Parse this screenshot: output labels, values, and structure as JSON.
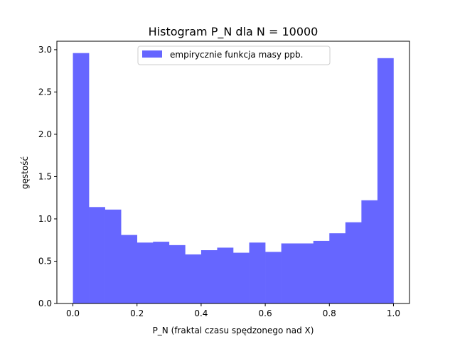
{
  "chart_data": {
    "type": "bar",
    "title": "Histogram P_N dla N = 10000",
    "xlabel": "P_N (fraktal czasu spędzonego nad X)",
    "ylabel": "gęstość",
    "xlim": [
      -0.05,
      1.05
    ],
    "ylim": [
      0,
      3.1
    ],
    "xticks": [
      0.0,
      0.2,
      0.4,
      0.6,
      0.8,
      1.0
    ],
    "xtick_labels": [
      "0.0",
      "0.2",
      "0.4",
      "0.6",
      "0.8",
      "1.0"
    ],
    "yticks": [
      0.0,
      0.5,
      1.0,
      1.5,
      2.0,
      2.5,
      3.0
    ],
    "ytick_labels": [
      "0.0",
      "0.5",
      "1.0",
      "1.5",
      "2.0",
      "2.5",
      "3.0"
    ],
    "grid": false,
    "legend_position": "upper center",
    "bin_edges": [
      0.0,
      0.05,
      0.1,
      0.15,
      0.2,
      0.25,
      0.3,
      0.35,
      0.4,
      0.45,
      0.5,
      0.55,
      0.6,
      0.65,
      0.7,
      0.75,
      0.8,
      0.85,
      0.9,
      0.95,
      1.0
    ],
    "series": [
      {
        "name": "empirycznie funkcja masy ppb.",
        "color": "#6666ff",
        "values": [
          2.96,
          1.14,
          1.11,
          0.81,
          0.72,
          0.73,
          0.69,
          0.58,
          0.63,
          0.66,
          0.6,
          0.72,
          0.61,
          0.71,
          0.71,
          0.74,
          0.83,
          0.96,
          1.22,
          2.9
        ]
      }
    ]
  }
}
